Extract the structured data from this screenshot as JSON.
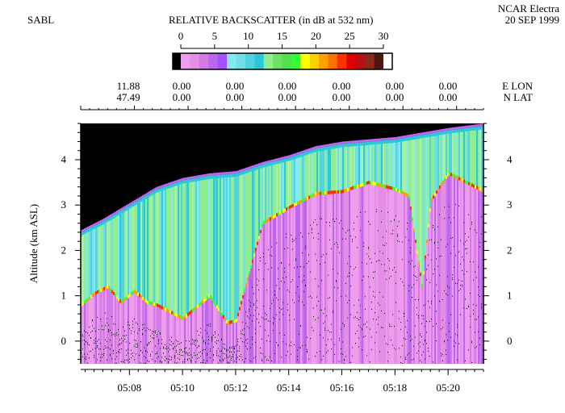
{
  "header": {
    "instrument": "SABL",
    "platform": "NCAR Electra",
    "date": "20 SEP 1999",
    "colorbar_title": "RELATIVE BACKSCATTER (in dB at 532 nm)"
  },
  "chart_data": {
    "type": "heatmap",
    "title": "RELATIVE BACKSCATTER (in dB at 532 nm)",
    "xlabel": "",
    "ylabel": "Altitude (km ASL)",
    "x_ticks": [
      "05:08",
      "05:10",
      "05:12",
      "05:14",
      "05:16",
      "05:18",
      "05:20"
    ],
    "y_ticks": [
      0,
      1,
      2,
      3,
      4
    ],
    "ylim": [
      -0.5,
      4.8
    ],
    "xlim": [
      "05:06:10",
      "05:21:20"
    ],
    "colorbar": {
      "ticks": [
        0,
        5,
        10,
        15,
        20,
        25,
        30
      ],
      "range": [
        0,
        30
      ],
      "colors": [
        "#ee9cee",
        "#e48ee8",
        "#d47ae8",
        "#bb66ee",
        "#a052ff",
        "#86e8f0",
        "#6fe0e8",
        "#4fd4e0",
        "#2cc8d8",
        "#90ee90",
        "#70e060",
        "#50e050",
        "#30ff30",
        "#ffff00",
        "#ffd000",
        "#ffa000",
        "#ff7000",
        "#ff3000",
        "#e00000",
        "#b81010",
        "#8b2a1a",
        "#4a1810"
      ]
    },
    "navigation": {
      "lon_label": "E LON",
      "lat_label": "N LAT",
      "lon": [
        "11.88",
        "0.00",
        "0.00",
        "0.00",
        "0.00",
        "0.00",
        "0.00"
      ],
      "lat": [
        "47.49",
        "0.00",
        "0.00",
        "0.00",
        "0.00",
        "0.00",
        "0.00"
      ]
    },
    "aircraft_altitude_km": [
      [
        "05:06:10",
        2.45
      ],
      [
        "05:07:00",
        2.7
      ],
      [
        "05:08:00",
        3.05
      ],
      [
        "05:09:00",
        3.4
      ],
      [
        "05:10:00",
        3.6
      ],
      [
        "05:11:00",
        3.7
      ],
      [
        "05:12:00",
        3.75
      ],
      [
        "05:13:00",
        3.95
      ],
      [
        "05:14:00",
        4.1
      ],
      [
        "05:15:00",
        4.3
      ],
      [
        "05:16:00",
        4.4
      ],
      [
        "05:17:00",
        4.45
      ],
      [
        "05:18:00",
        4.5
      ],
      [
        "05:19:00",
        4.6
      ],
      [
        "05:20:00",
        4.7
      ],
      [
        "05:21:20",
        4.8
      ]
    ],
    "boundary_layer_top_km": [
      [
        "05:06:10",
        0.8
      ],
      [
        "05:06:40",
        1.05
      ],
      [
        "05:07:10",
        1.2
      ],
      [
        "05:07:40",
        0.85
      ],
      [
        "05:08:10",
        1.1
      ],
      [
        "05:08:40",
        0.85
      ],
      [
        "05:09:00",
        0.8
      ],
      [
        "05:10:00",
        0.5
      ],
      [
        "05:11:00",
        1.0
      ],
      [
        "05:11:40",
        0.4
      ],
      [
        "05:12:00",
        0.45
      ],
      [
        "05:13:00",
        2.6
      ],
      [
        "05:14:00",
        2.95
      ],
      [
        "05:15:00",
        3.25
      ],
      [
        "05:16:00",
        3.3
      ],
      [
        "05:17:00",
        3.5
      ],
      [
        "05:18:00",
        3.35
      ],
      [
        "05:18:30",
        3.2
      ],
      [
        "05:19:00",
        1.2
      ],
      [
        "05:19:20",
        3.1
      ],
      [
        "05:20:00",
        3.7
      ],
      [
        "05:21:20",
        3.3
      ]
    ]
  }
}
